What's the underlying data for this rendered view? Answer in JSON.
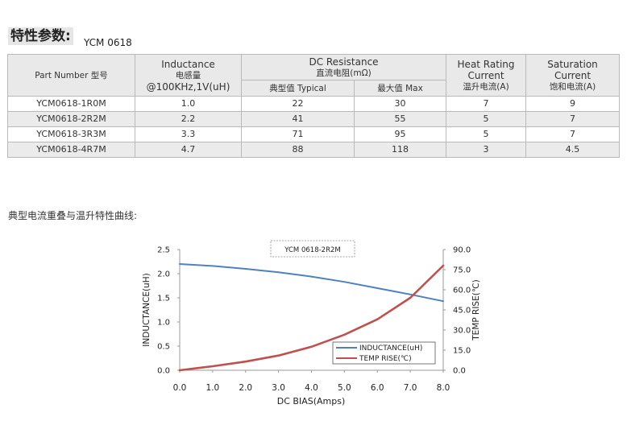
{
  "header": {
    "title": "特性参数:",
    "model": "YCM 0618"
  },
  "table": {
    "col_part": "Part Number  型号",
    "col_inductance": [
      "Inductance",
      "电感量",
      "@100KHz,1V(uH)"
    ],
    "col_dcr": [
      "DC Resistance",
      "直流电阻(mΩ)"
    ],
    "col_dcr_typ": "典型值 Typical",
    "col_dcr_max": "最大值 Max",
    "col_heat": [
      "Heat Rating",
      "Current",
      "温升电流(A)"
    ],
    "col_sat": [
      "Saturation",
      "Current",
      "饱和电流(A)"
    ],
    "rows": [
      {
        "part": "YCM0618-1R0M",
        "ind": "1.0",
        "typ": "22",
        "max": "30",
        "heat": "7",
        "sat": "9"
      },
      {
        "part": "YCM0618-2R2M",
        "ind": "2.2",
        "typ": "41",
        "max": "55",
        "heat": "5",
        "sat": "7"
      },
      {
        "part": "YCM0618-3R3M",
        "ind": "3.3",
        "typ": "71",
        "max": "95",
        "heat": "5",
        "sat": "7"
      },
      {
        "part": "YCM0618-4R7M",
        "ind": "4.7",
        "typ": "88",
        "max": "118",
        "heat": "3",
        "sat": "4.5"
      }
    ]
  },
  "curve_caption": "典型电流重叠与温升特性曲线:",
  "chart_data": {
    "type": "line",
    "title": "YCM 0618-2R2M",
    "xlabel": "DC BIAS(Amps)",
    "ylabel": "INDUCTANCE(uH)",
    "y2label": "TEMP RISE(℃)",
    "xlim": [
      0,
      8
    ],
    "ylim": [
      0,
      2.5
    ],
    "y2lim": [
      0,
      90
    ],
    "xticks": [
      "0.0",
      "1.0",
      "2.0",
      "3.0",
      "4.0",
      "5.0",
      "6.0",
      "7.0",
      "8.0"
    ],
    "yticks": [
      "0.0",
      "0.5",
      "1.0",
      "1.5",
      "2.0",
      "2.5"
    ],
    "y2ticks": [
      "0.0",
      "15.0",
      "30.0",
      "45.0",
      "60.0",
      "75.0",
      "90.0"
    ],
    "series": [
      {
        "name": "INDUCTANCE(uH)",
        "axis": "left",
        "color": "#4f81bd",
        "x": [
          0,
          1,
          2,
          3,
          4,
          5,
          6,
          7,
          8
        ],
        "y": [
          2.2,
          2.16,
          2.1,
          2.03,
          1.94,
          1.83,
          1.7,
          1.57,
          1.43
        ]
      },
      {
        "name": "TEMP RISE(℃)",
        "axis": "right",
        "color": "#c0504d",
        "x": [
          0,
          1,
          2,
          3,
          4,
          5,
          6,
          7,
          8
        ],
        "y": [
          0,
          3,
          6.5,
          11,
          17.5,
          26.5,
          38,
          54,
          78
        ]
      }
    ],
    "legend_position": "lower-right",
    "grid": false
  }
}
